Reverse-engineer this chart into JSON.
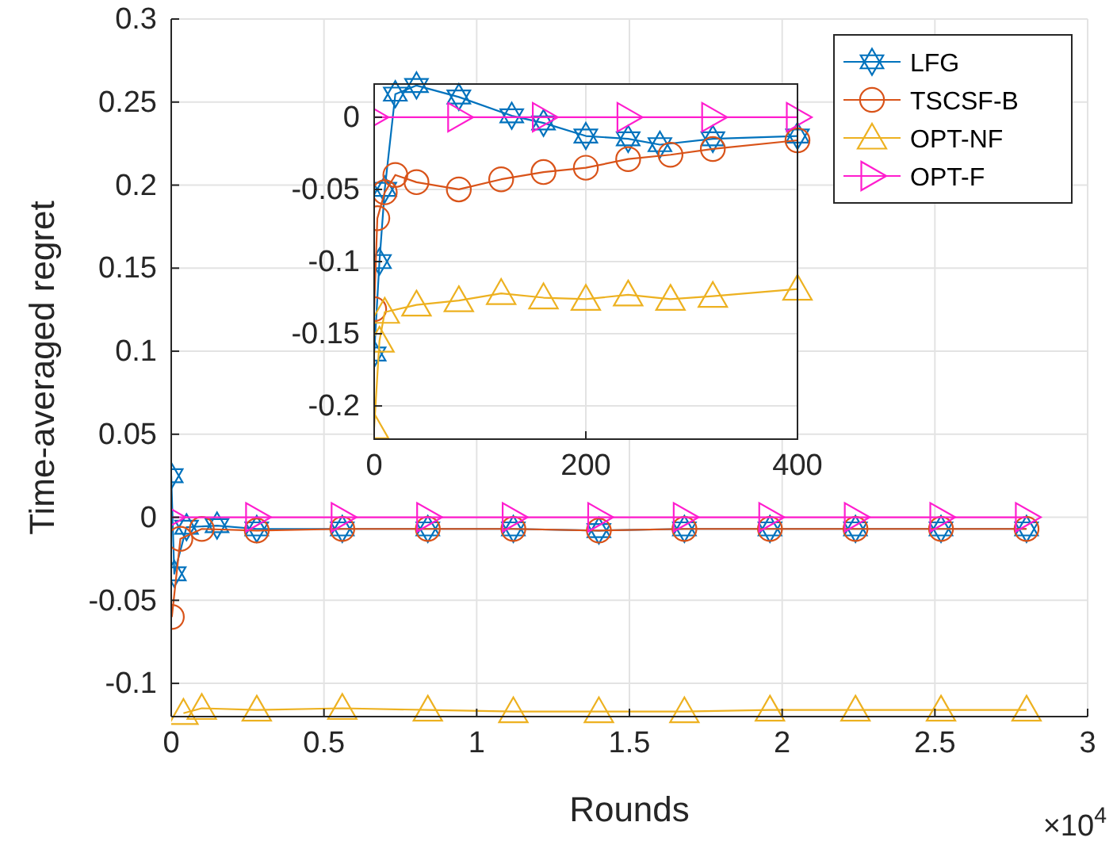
{
  "chart_data": [
    {
      "type": "line",
      "xlabel": "Rounds",
      "ylabel": "Time-averaged regret",
      "annotations": [
        "×10$^{4}$"
      ],
      "xlim": [
        0,
        3
      ],
      "xticks": [
        0,
        0.5,
        1,
        1.5,
        2,
        2.5,
        3
      ],
      "ylim": [
        -0.12,
        0.3
      ],
      "yticks": [
        -0.1,
        -0.05,
        0,
        0.05,
        0.1,
        0.15,
        0.2,
        0.25,
        0.3
      ],
      "grid": true,
      "legend": "top right",
      "line_style": "solid",
      "series": [
        {
          "name": "LFG",
          "color": "#0072bd",
          "marker": "star",
          "x": [
            0,
            0.01,
            0.05,
            0.15,
            0.28,
            0.56,
            0.84,
            1.12,
            1.4,
            1.68,
            1.96,
            2.24,
            2.52,
            2.8
          ],
          "values": [
            0.025,
            -0.034,
            -0.006,
            -0.005,
            -0.007,
            -0.007,
            -0.007,
            -0.007,
            -0.008,
            -0.007,
            -0.007,
            -0.007,
            -0.007,
            -0.007
          ]
        },
        {
          "name": "TSCSF-B",
          "color": "#d95319",
          "marker": "circle",
          "x": [
            0.002,
            0.03,
            0.1,
            0.28,
            0.56,
            0.84,
            1.12,
            1.4,
            1.68,
            1.96,
            2.24,
            2.52,
            2.8
          ],
          "values": [
            -0.06,
            -0.013,
            -0.007,
            -0.008,
            -0.007,
            -0.007,
            -0.007,
            -0.008,
            -0.007,
            -0.007,
            -0.007,
            -0.007,
            -0.007
          ]
        },
        {
          "name": "OPT-NF",
          "color": "#edb120",
          "marker": "triangle",
          "x": [
            0.04,
            0.1,
            0.28,
            0.56,
            0.84,
            1.12,
            1.4,
            1.68,
            1.96,
            2.24,
            2.52,
            2.8
          ],
          "values": [
            -0.118,
            -0.115,
            -0.116,
            -0.115,
            -0.116,
            -0.117,
            -0.117,
            -0.117,
            -0.116,
            -0.116,
            -0.116,
            -0.116
          ]
        },
        {
          "name": "OPT-F",
          "color": "#ff1dce",
          "marker": "triangle-right",
          "x": [
            0,
            0.28,
            0.56,
            0.84,
            1.12,
            1.4,
            1.68,
            1.96,
            2.24,
            2.52,
            2.8
          ],
          "values": [
            0,
            0,
            0,
            0,
            0,
            0,
            0,
            0,
            0,
            0,
            0
          ]
        }
      ]
    },
    {
      "type": "line",
      "xlim": [
        0,
        400
      ],
      "xticks": [
        0,
        200,
        400
      ],
      "ylim": [
        -0.223,
        0.023
      ],
      "yticks": [
        -0.2,
        -0.15,
        -0.1,
        -0.05,
        0
      ],
      "grid": true,
      "line_style": "solid",
      "series": [
        {
          "color": "#0072bd",
          "marker": "star",
          "x": [
            0,
            5,
            10,
            20,
            40,
            80,
            130,
            160,
            200,
            240,
            270,
            320,
            400
          ],
          "values": [
            -0.164,
            -0.1,
            -0.05,
            0.016,
            0.022,
            0.014,
            0.001,
            -0.004,
            -0.013,
            -0.015,
            -0.019,
            -0.015,
            -0.013
          ]
        },
        {
          "color": "#d95319",
          "marker": "circle",
          "x": [
            0,
            3,
            10,
            20,
            40,
            80,
            120,
            160,
            200,
            240,
            280,
            320,
            400
          ],
          "values": [
            -0.133,
            -0.07,
            -0.052,
            -0.04,
            -0.045,
            -0.05,
            -0.043,
            -0.038,
            -0.035,
            -0.029,
            -0.026,
            -0.022,
            -0.016
          ]
        },
        {
          "color": "#edb120",
          "marker": "triangle",
          "x": [
            0,
            5,
            10,
            40,
            80,
            120,
            160,
            200,
            240,
            280,
            320,
            400
          ],
          "values": [
            -0.215,
            -0.155,
            -0.135,
            -0.13,
            -0.127,
            -0.122,
            -0.125,
            -0.126,
            -0.123,
            -0.126,
            -0.124,
            -0.119
          ]
        },
        {
          "color": "#ff1dce",
          "marker": "triangle-right",
          "x": [
            0,
            80,
            160,
            240,
            320,
            400
          ],
          "values": [
            0,
            0,
            0,
            0,
            0,
            0
          ]
        }
      ]
    }
  ]
}
